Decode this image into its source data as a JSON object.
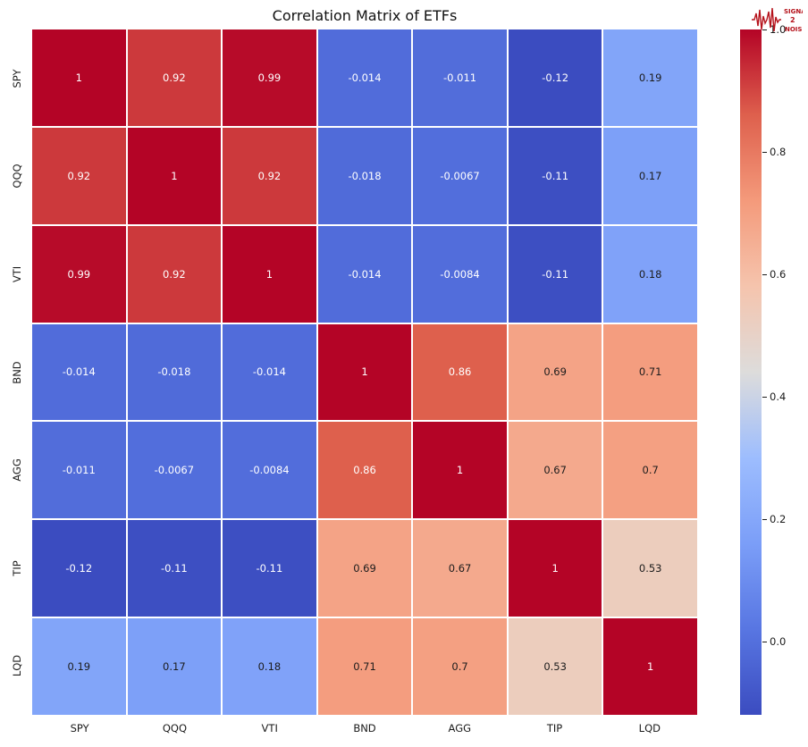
{
  "chart_data": {
    "type": "heatmap",
    "title": "Correlation Matrix of ETFs",
    "categories": [
      "SPY",
      "QQQ",
      "VTI",
      "BND",
      "AGG",
      "TIP",
      "LQD"
    ],
    "matrix": [
      [
        1,
        0.92,
        0.99,
        -0.014,
        -0.011,
        -0.12,
        0.19
      ],
      [
        0.92,
        1,
        0.92,
        -0.018,
        -0.0067,
        -0.11,
        0.17
      ],
      [
        0.99,
        0.92,
        1,
        -0.014,
        -0.0084,
        -0.11,
        0.18
      ],
      [
        -0.014,
        -0.018,
        -0.014,
        1,
        0.86,
        0.69,
        0.71
      ],
      [
        -0.011,
        -0.0067,
        -0.0084,
        0.86,
        1,
        0.67,
        0.7
      ],
      [
        -0.12,
        -0.11,
        -0.11,
        0.69,
        0.67,
        1,
        0.53
      ],
      [
        0.19,
        0.17,
        0.18,
        0.71,
        0.7,
        0.53,
        1
      ]
    ],
    "labels": [
      [
        "1",
        "0.92",
        "0.99",
        "-0.014",
        "-0.011",
        "-0.12",
        "0.19"
      ],
      [
        "0.92",
        "1",
        "0.92",
        "-0.018",
        "-0.0067",
        "-0.11",
        "0.17"
      ],
      [
        "0.99",
        "0.92",
        "1",
        "-0.014",
        "-0.0084",
        "-0.11",
        "0.18"
      ],
      [
        "-0.014",
        "-0.018",
        "-0.014",
        "1",
        "0.86",
        "0.69",
        "0.71"
      ],
      [
        "-0.011",
        "-0.0067",
        "-0.0084",
        "0.86",
        "1",
        "0.67",
        "0.7"
      ],
      [
        "-0.12",
        "-0.11",
        "-0.11",
        "0.69",
        "0.67",
        "1",
        "0.53"
      ],
      [
        "0.19",
        "0.17",
        "0.18",
        "0.71",
        "0.7",
        "0.53",
        "1"
      ]
    ],
    "colormap": "coolwarm",
    "vmin": -0.12,
    "vmax": 1.0,
    "grid_line_color": "#ffffff",
    "legend_position": "right-colorbar",
    "colorbar_ticks": [
      0.0,
      0.2,
      0.4,
      0.6,
      0.8,
      1.0
    ],
    "colorbar_tick_labels": [
      "0.0",
      "0.2",
      "0.4",
      "0.6",
      "0.8",
      "1.0"
    ]
  },
  "logo": {
    "line1": "SIGNAL",
    "line2": "2",
    "line3": "NOISE",
    "color": "#b5121b"
  }
}
